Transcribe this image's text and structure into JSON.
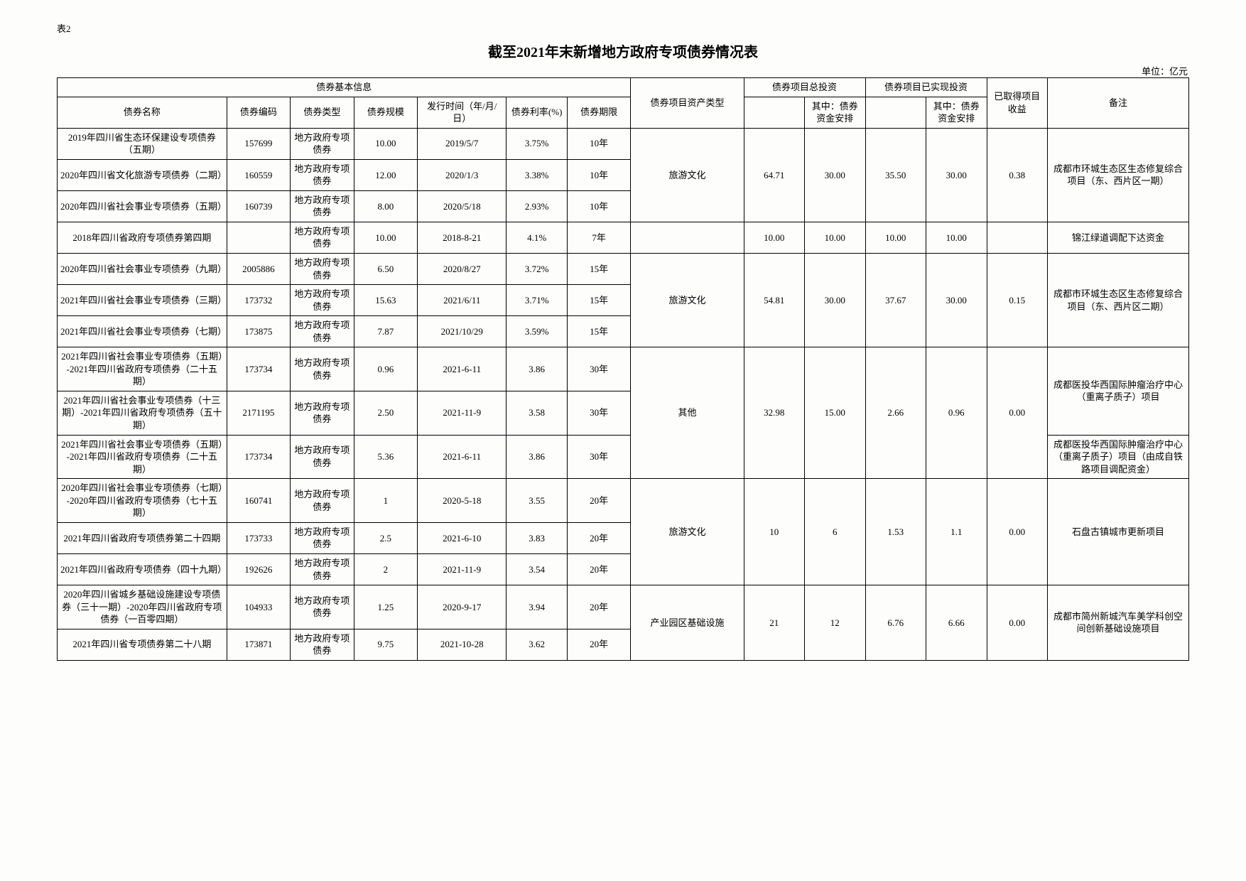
{
  "sheet_label": "表2",
  "title": "截至2021年末新增地方政府专项债券情况表",
  "unit": "单位：亿元",
  "headers": {
    "group_basic": "债券基本信息",
    "name": "债券名称",
    "code": "债券编码",
    "type": "债券类型",
    "scale": "债券规模",
    "issue_date": "发行时间（年/月/日）",
    "rate": "债券利率(%)",
    "term": "债券期限",
    "asset_type": "债券项目资产类型",
    "group_total_invest": "债券项目总投资",
    "group_realized_invest": "债券项目已实现投资",
    "sub_of_which": "其中：债券资金安排",
    "earned": "已取得项目收益",
    "remark": "备注"
  },
  "groups": [
    {
      "asset": "旅游文化",
      "ti": "64.71",
      "ti_sub": "30.00",
      "ri": "35.50",
      "ri_sub": "30.00",
      "earned": "0.38",
      "remark": "成都市环城生态区生态修复综合项目（东、西片区一期）",
      "rows": [
        {
          "name": "2019年四川省生态环保建设专项债券（五期）",
          "code": "157699",
          "type": "地方政府专项债券",
          "scale": "10.00",
          "date": "2019/5/7",
          "rate": "3.75%",
          "term": "10年"
        },
        {
          "name": "2020年四川省文化旅游专项债券（二期）",
          "code": "160559",
          "type": "地方政府专项债券",
          "scale": "12.00",
          "date": "2020/1/3",
          "rate": "3.38%",
          "term": "10年"
        },
        {
          "name": "2020年四川省社会事业专项债券（五期）",
          "code": "160739",
          "type": "地方政府专项债券",
          "scale": "8.00",
          "date": "2020/5/18",
          "rate": "2.93%",
          "term": "10年"
        }
      ]
    },
    {
      "asset": "",
      "ti": "10.00",
      "ti_sub": "10.00",
      "ri": "10.00",
      "ri_sub": "10.00",
      "earned": "",
      "remark": "锦江绿道调配下达资金",
      "rows": [
        {
          "name": "2018年四川省政府专项债券第四期",
          "code": "",
          "type": "地方政府专项债券",
          "scale": "10.00",
          "date": "2018-8-21",
          "rate": "4.1%",
          "term": "7年"
        }
      ]
    },
    {
      "asset": "旅游文化",
      "ti": "54.81",
      "ti_sub": "30.00",
      "ri": "37.67",
      "ri_sub": "30.00",
      "earned": "0.15",
      "remark": "成都市环城生态区生态修复综合项目（东、西片区二期）",
      "rows": [
        {
          "name": "2020年四川省社会事业专项债券（九期）",
          "code": "2005886",
          "type": "地方政府专项债券",
          "scale": "6.50",
          "date": "2020/8/27",
          "rate": "3.72%",
          "term": "15年"
        },
        {
          "name": "2021年四川省社会事业专项债券（三期）",
          "code": "173732",
          "type": "地方政府专项债券",
          "scale": "15.63",
          "date": "2021/6/11",
          "rate": "3.71%",
          "term": "15年"
        },
        {
          "name": "2021年四川省社会事业专项债券（七期）",
          "code": "173875",
          "type": "地方政府专项债券",
          "scale": "7.87",
          "date": "2021/10/29",
          "rate": "3.59%",
          "term": "15年"
        }
      ]
    },
    {
      "asset": "其他",
      "ti": "32.98",
      "ti_sub": "15.00",
      "ri": "2.66",
      "ri_sub": "0.96",
      "earned": "0.00",
      "remark_rows": [
        "成都医投华西国际肿瘤治疗中心（重离子质子）项目",
        "成都医投华西国际肿瘤治疗中心（重离子质子）项目（由成自铁路项目调配资金）"
      ],
      "rows": [
        {
          "name": "2021年四川省社会事业专项债券（五期）-2021年四川省政府专项债券（二十五期）",
          "code": "173734",
          "type": "地方政府专项债券",
          "scale": "0.96",
          "date": "2021-6-11",
          "rate": "3.86",
          "term": "30年"
        },
        {
          "name": "2021年四川省社会事业专项债券（十三期）-2021年四川省政府专项债券（五十期）",
          "code": "2171195",
          "type": "地方政府专项债券",
          "scale": "2.50",
          "date": "2021-11-9",
          "rate": "3.58",
          "term": "30年"
        },
        {
          "name": "2021年四川省社会事业专项债券（五期）-2021年四川省政府专项债券（二十五期）",
          "code": "173734",
          "type": "地方政府专项债券",
          "scale": "5.36",
          "date": "2021-6-11",
          "rate": "3.86",
          "term": "30年"
        }
      ]
    },
    {
      "asset": "旅游文化",
      "ti": "10",
      "ti_sub": "6",
      "ri": "1.53",
      "ri_sub": "1.1",
      "earned": "0.00",
      "remark": "石盘古镇城市更新项目",
      "rows": [
        {
          "name": "2020年四川省社会事业专项债券（七期）-2020年四川省政府专项债券（七十五期）",
          "code": "160741",
          "type": "地方政府专项债券",
          "scale": "1",
          "date": "2020-5-18",
          "rate": "3.55",
          "term": "20年"
        },
        {
          "name": "2021年四川省政府专项债券第二十四期",
          "code": "173733",
          "type": "地方政府专项债券",
          "scale": "2.5",
          "date": "2021-6-10",
          "rate": "3.83",
          "term": "20年"
        },
        {
          "name": "2021年四川省政府专项债券（四十九期）",
          "code": "192626",
          "type": "地方政府专项债券",
          "scale": "2",
          "date": "2021-11-9",
          "rate": "3.54",
          "term": "20年"
        }
      ]
    },
    {
      "asset": "产业园区基础设施",
      "ti": "21",
      "ti_sub": "12",
      "ri": "6.76",
      "ri_sub": "6.66",
      "earned": "0.00",
      "remark": "成都市简州新城汽车美学科创空间创新基础设施项目",
      "rows": [
        {
          "name": "2020年四川省城乡基础设施建设专项债券（三十一期）-2020年四川省政府专项债券（一百零四期）",
          "code": "104933",
          "type": "地方政府专项债券",
          "scale": "1.25",
          "date": "2020-9-17",
          "rate": "3.94",
          "term": "20年"
        },
        {
          "name": "2021年四川省专项债券第二十八期",
          "code": "173871",
          "type": "地方政府专项债券",
          "scale": "9.75",
          "date": "2021-10-28",
          "rate": "3.62",
          "term": "20年"
        }
      ]
    }
  ]
}
